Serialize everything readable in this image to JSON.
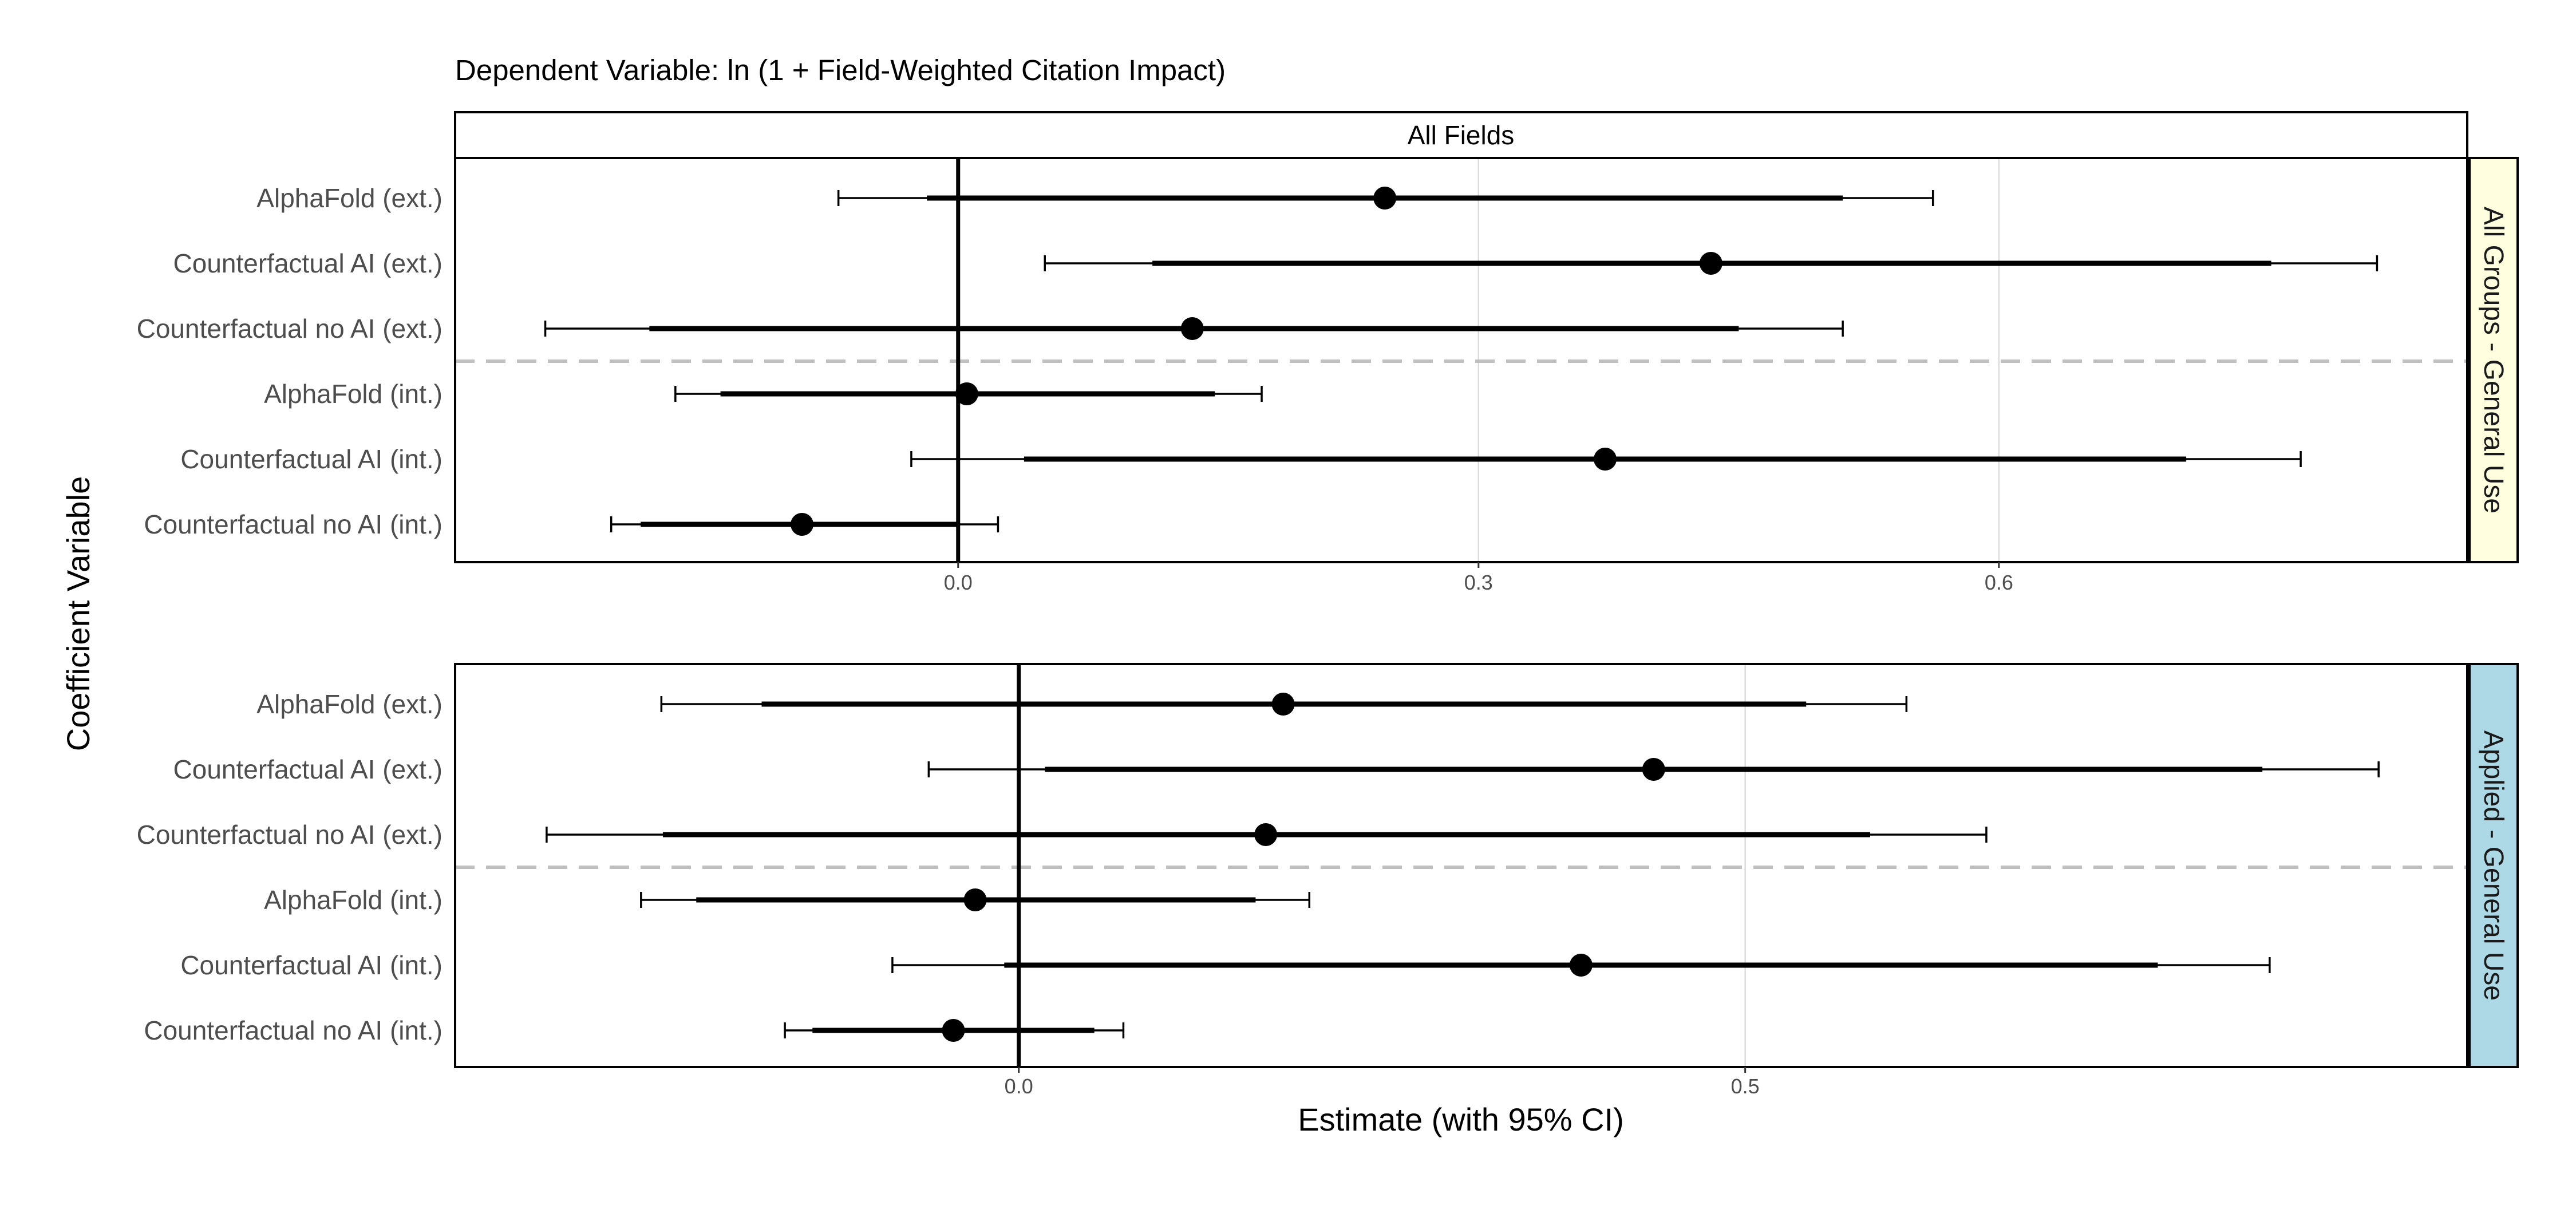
{
  "title": "Dependent Variable: ln (1 + Field-Weighted Citation Impact)",
  "facet_column_label": "All Fields",
  "xlabel": "Estimate (with 95% CI)",
  "ylabel": "Coefficient Variable",
  "colors": {
    "point": "#000000",
    "interval": "#000000",
    "zero_line": "#000000",
    "separator": "#bfbfbf",
    "grid": "#dcdcdc",
    "strip_top": "#ffffff",
    "strip_row_1": "#ffffe0",
    "strip_row_2": "#add8e6",
    "axis_text": "#4d4d4d"
  },
  "chart_data": [
    {
      "type": "scatter",
      "subtype": "coefficient-plot",
      "facet": "All Groups - General Use",
      "facet_column": "All Fields",
      "categories": [
        "AlphaFold (ext.)",
        "Counterfactual AI (ext.)",
        "Counterfactual no AI (ext.)",
        "AlphaFold (int.)",
        "Counterfactual AI (int.)",
        "Counterfactual no AI (int.)"
      ],
      "estimate": [
        0.246,
        0.434,
        0.135,
        0.005,
        0.373,
        -0.09
      ],
      "ci_inner_low": [
        -0.018,
        0.112,
        -0.178,
        -0.137,
        0.038,
        -0.183
      ],
      "ci_inner_high": [
        0.51,
        0.757,
        0.45,
        0.148,
        0.708,
        0.0
      ],
      "ci95_low": [
        -0.069,
        0.05,
        -0.238,
        -0.163,
        -0.027,
        -0.2
      ],
      "ci95_high": [
        0.562,
        0.818,
        0.51,
        0.175,
        0.774,
        0.023
      ],
      "xlim": [
        -0.29,
        0.87
      ],
      "xticks": [
        0.0,
        0.3,
        0.6
      ],
      "xtick_labels": [
        "0.0",
        "0.3",
        "0.6"
      ],
      "separator_after_index": 2,
      "grid": "vertical-major"
    },
    {
      "type": "scatter",
      "subtype": "coefficient-plot",
      "facet": "Applied - General Use",
      "facet_column": "All Fields",
      "categories": [
        "AlphaFold (ext.)",
        "Counterfactual AI (ext.)",
        "Counterfactual no AI (ext.)",
        "AlphaFold (int.)",
        "Counterfactual AI (int.)",
        "Counterfactual no AI (int.)"
      ],
      "estimate": [
        0.182,
        0.437,
        0.17,
        -0.03,
        0.387,
        -0.045
      ],
      "ci_inner_low": [
        -0.177,
        0.018,
        -0.245,
        -0.222,
        -0.01,
        -0.142
      ],
      "ci_inner_high": [
        0.542,
        0.856,
        0.586,
        0.163,
        0.784,
        0.052
      ],
      "ci95_low": [
        -0.246,
        -0.062,
        -0.325,
        -0.26,
        -0.087,
        -0.161
      ],
      "ci95_high": [
        0.611,
        0.936,
        0.666,
        0.2,
        0.861,
        0.072
      ],
      "xlim": [
        -0.388,
        0.997
      ],
      "xticks": [
        0.0,
        0.5
      ],
      "xtick_labels": [
        "0.0",
        "0.5"
      ],
      "separator_after_index": 2,
      "grid": "vertical-major"
    }
  ]
}
